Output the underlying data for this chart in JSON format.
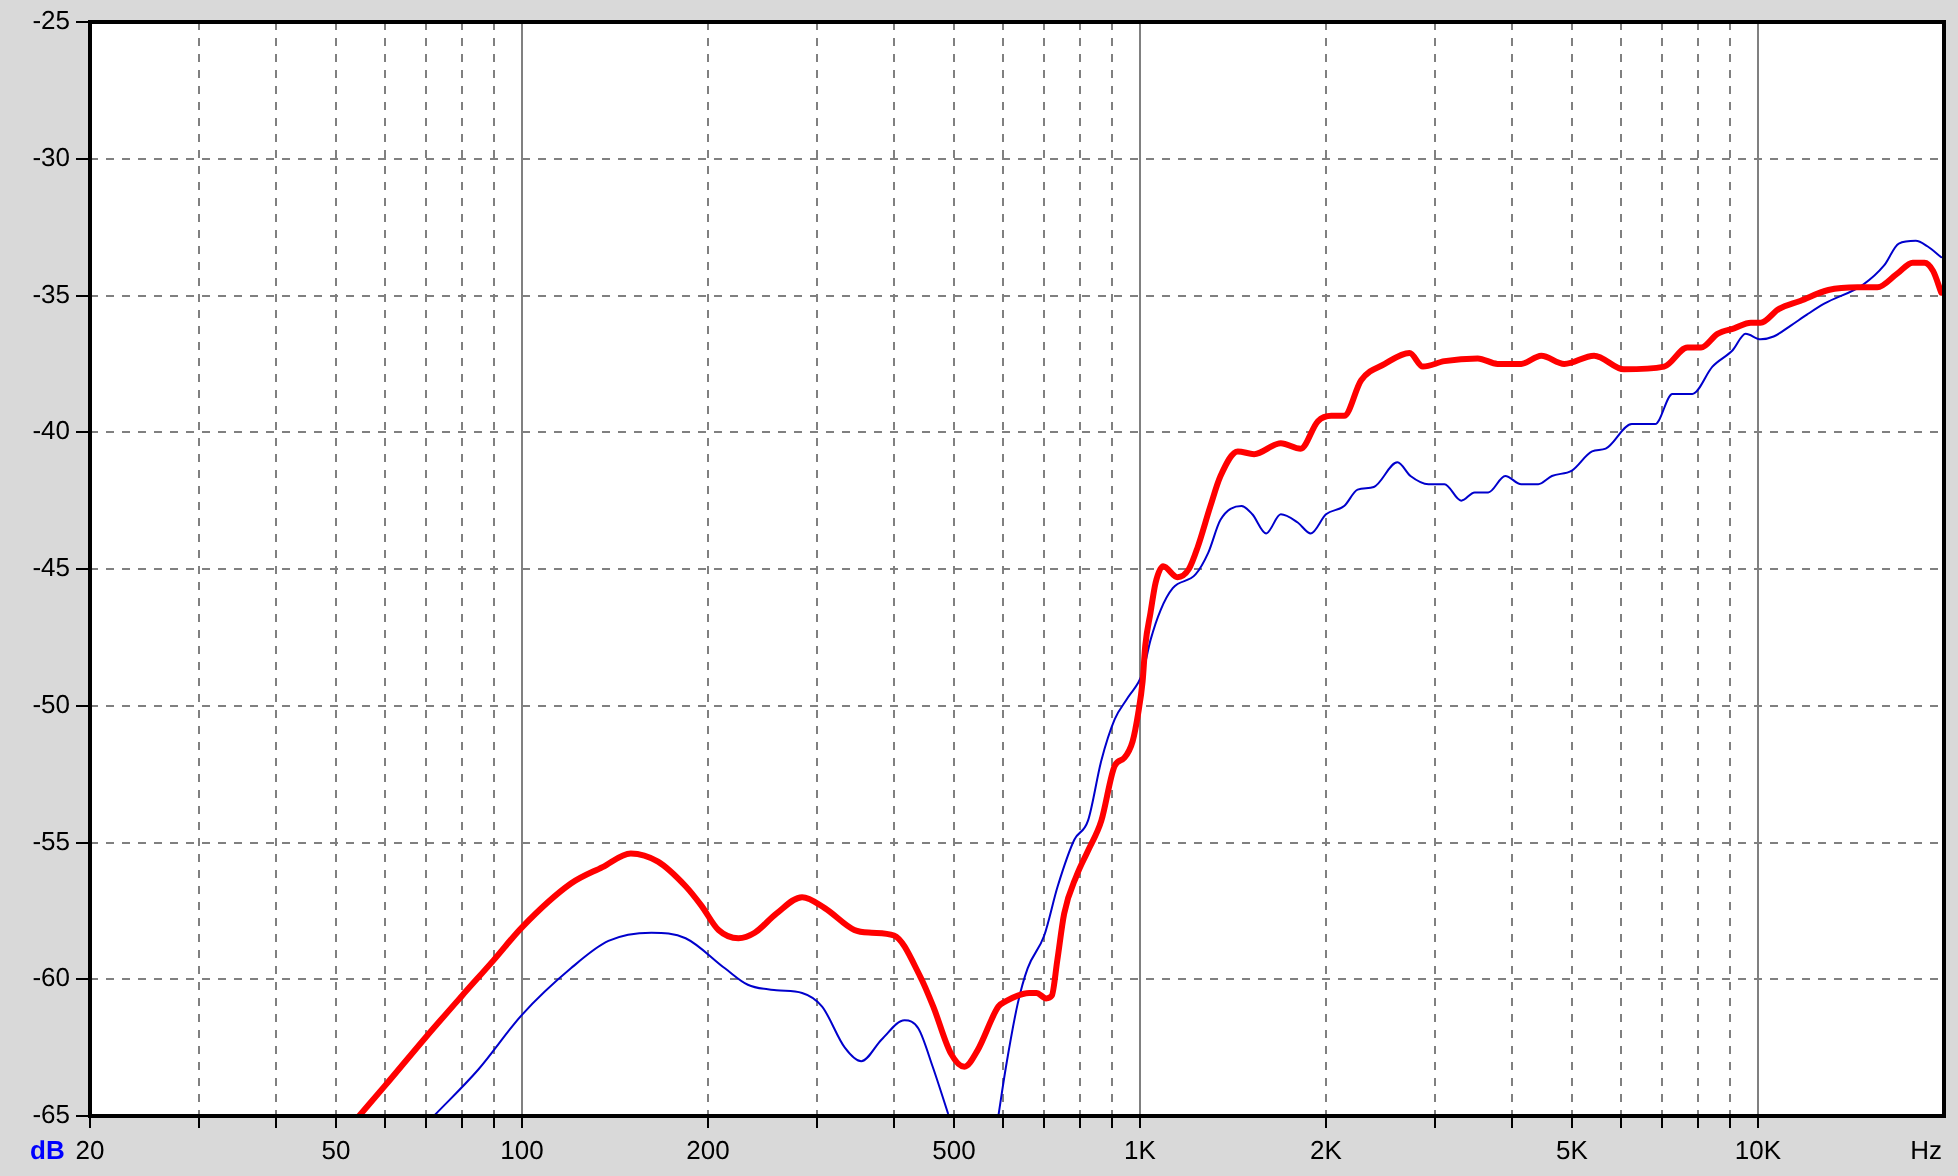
{
  "chart_data": {
    "type": "line",
    "xlabel": "Hz",
    "ylabel": "dB",
    "log": "x",
    "xlim": [
      20,
      20000
    ],
    "ylim": [
      -65,
      -25
    ],
    "xticks": [
      20,
      {
        "value": 30,
        "label": null
      },
      {
        "value": 40,
        "label": null
      },
      50,
      {
        "value": 60,
        "label": null
      },
      {
        "value": 70,
        "label": null
      },
      {
        "value": 80,
        "label": null
      },
      {
        "value": 90,
        "label": null
      },
      100,
      200,
      {
        "value": 300,
        "label": null
      },
      {
        "value": 400,
        "label": null
      },
      500,
      {
        "value": 600,
        "label": null
      },
      {
        "value": 700,
        "label": null
      },
      {
        "value": 800,
        "label": null
      },
      {
        "value": 900,
        "label": null
      },
      {
        "value": 1000,
        "label": "1K"
      },
      {
        "value": 2000,
        "label": "2K"
      },
      {
        "value": 3000,
        "label": null
      },
      {
        "value": 4000,
        "label": null
      },
      {
        "value": 5000,
        "label": "5K"
      },
      {
        "value": 6000,
        "label": null
      },
      {
        "value": 7000,
        "label": null
      },
      {
        "value": 8000,
        "label": null
      },
      {
        "value": 9000,
        "label": null
      },
      {
        "value": 10000,
        "label": "10K"
      }
    ],
    "yticks": [
      -65,
      -60,
      -55,
      -50,
      -45,
      -40,
      -35,
      -30,
      -25
    ],
    "grid": true,
    "series": [
      {
        "color": "#ff0000",
        "x": [
          54.5,
          60,
          70,
          80,
          90,
          100,
          120,
          135,
          150,
          166,
          184,
          195,
          208,
          224,
          238,
          258,
          284,
          309,
          345,
          368,
          400,
          441,
          463,
          494,
          520,
          546,
          590,
          607,
          662,
          680,
          705,
          720,
          735,
          754,
          790,
          824,
          866,
          910,
          944,
          973,
          993,
          1010,
          1020,
          1040,
          1060,
          1090,
          1150,
          1200,
          1240,
          1300,
          1350,
          1440,
          1530,
          1690,
          1820,
          1940,
          2040,
          2140,
          2280,
          2490,
          2730,
          2870,
          3110,
          3520,
          3790,
          4140,
          4460,
          4860,
          5430,
          6070,
          7050,
          7690,
          8090,
          8600,
          9150,
          9740,
          10100,
          10800,
          11700,
          13000,
          14500,
          15600,
          16800,
          17800,
          18600,
          19200,
          19800
        ],
        "values": [
          -65,
          -63.9,
          -62.1,
          -60.6,
          -59.3,
          -58.1,
          -56.5,
          -55.9,
          -55.4,
          -55.7,
          -56.6,
          -57.3,
          -58.2,
          -58.5,
          -58.3,
          -57.6,
          -57.0,
          -57.4,
          -58.2,
          -58.3,
          -58.4,
          -59.9,
          -61.0,
          -62.7,
          -63.2,
          -62.6,
          -61.0,
          -60.8,
          -60.5,
          -60.5,
          -60.7,
          -60.6,
          -59.3,
          -57.6,
          -56.2,
          -55.3,
          -54.2,
          -52.2,
          -51.9,
          -51.3,
          -50.3,
          -49.1,
          -47.8,
          -46.6,
          -45.5,
          -44.9,
          -45.3,
          -45.0,
          -44.2,
          -42.7,
          -41.6,
          -40.7,
          -40.8,
          -40.4,
          -40.6,
          -39.6,
          -39.4,
          -39.4,
          -38.1,
          -37.5,
          -37.1,
          -37.6,
          -37.4,
          -37.3,
          -37.5,
          -37.5,
          -37.2,
          -37.5,
          -37.2,
          -37.7,
          -37.6,
          -36.9,
          -36.9,
          -36.4,
          -36.2,
          -36.0,
          -36.0,
          -35.5,
          -35.2,
          -34.8,
          -34.7,
          -34.7,
          -34.2,
          -33.8,
          -33.8,
          -34.1,
          -34.9
        ]
      },
      {
        "color": "#0000cc",
        "x": [
          72,
          85,
          100,
          120,
          138,
          162,
          184,
          213,
          232,
          258,
          284,
          306,
          333,
          354,
          382,
          416,
          438,
          462,
          489,
          540,
          590,
          607,
          634,
          658,
          700,
          736,
          783,
          824,
          866,
          910,
          956,
          1010,
          1040,
          1080,
          1130,
          1230,
          1290,
          1350,
          1460,
          1520,
          1600,
          1690,
          1800,
          1890,
          2000,
          2140,
          2250,
          2390,
          2610,
          2740,
          2930,
          3110,
          3310,
          3480,
          3660,
          3900,
          4140,
          4410,
          4640,
          5000,
          5390,
          5670,
          6250,
          6820,
          7270,
          7830,
          8440,
          9100,
          9550,
          10100,
          10600,
          11300,
          12000,
          12800,
          14800,
          16000,
          16900,
          18000,
          18800,
          19800
        ],
        "values": [
          -65,
          -63.3,
          -61.3,
          -59.6,
          -58.6,
          -58.3,
          -58.5,
          -59.6,
          -60.2,
          -60.4,
          -60.5,
          -61.0,
          -62.5,
          -63.0,
          -62.2,
          -61.5,
          -61.8,
          -63.2,
          -64.9,
          null,
          -65,
          -63.2,
          -60.9,
          -59.6,
          -58.4,
          -56.6,
          -54.9,
          -54.2,
          -52.0,
          -50.5,
          -49.7,
          -48.8,
          -47.6,
          -46.5,
          -45.7,
          -45.2,
          -44.4,
          -43.2,
          -42.7,
          -43.0,
          -43.7,
          -43.0,
          -43.3,
          -43.7,
          -43.0,
          -42.7,
          -42.1,
          -42.0,
          -41.1,
          -41.6,
          -41.9,
          -41.9,
          -42.5,
          -42.2,
          -42.2,
          -41.6,
          -41.9,
          -41.9,
          -41.6,
          -41.4,
          -40.7,
          -40.6,
          -39.7,
          -39.7,
          -38.6,
          -38.6,
          -37.6,
          -37.0,
          -36.4,
          -36.6,
          -36.5,
          -36.1,
          -35.7,
          -35.3,
          -34.6,
          -33.9,
          -33.1,
          -33.0,
          -33.2,
          -33.6
        ]
      }
    ]
  }
}
